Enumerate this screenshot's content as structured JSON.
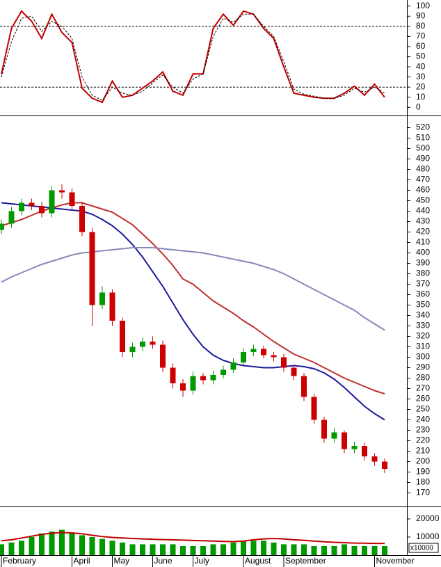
{
  "chart_data": [
    {
      "type": "line",
      "series": [
        {
          "color": "#c00000",
          "style": "solid",
          "values": [
            33,
            78,
            95,
            85,
            68,
            92,
            74,
            64,
            19,
            9,
            5,
            26,
            10,
            12,
            19,
            26,
            35,
            16,
            12,
            33,
            33,
            78,
            92,
            81,
            95,
            92,
            78,
            68,
            40,
            14,
            12,
            10,
            9,
            9,
            14,
            21,
            12,
            23,
            10
          ]
        },
        {
          "color": "#000000",
          "style": "dashed",
          "values": [
            30,
            65,
            88,
            90,
            75,
            85,
            80,
            68,
            30,
            12,
            7,
            20,
            14,
            12,
            16,
            24,
            32,
            20,
            14,
            28,
            33,
            70,
            88,
            84,
            92,
            92,
            80,
            70,
            45,
            18,
            13,
            11,
            9,
            9,
            12,
            19,
            15,
            20,
            14
          ]
        }
      ],
      "levels": [
        80,
        20
      ],
      "ylim": [
        -8,
        106
      ],
      "yticks": [
        0,
        10,
        20,
        30,
        40,
        50,
        60,
        70,
        80,
        90,
        100
      ]
    },
    {
      "type": "candlestick",
      "open": [
        422,
        428,
        440,
        448,
        445,
        438,
        460,
        458,
        445,
        420,
        350,
        362,
        335,
        305,
        310,
        315,
        312,
        290,
        275,
        268,
        282,
        278,
        283,
        288,
        295,
        305,
        308,
        302,
        300,
        290,
        282,
        262,
        240,
        222,
        228,
        212,
        215,
        205,
        200
      ],
      "high": [
        432,
        444,
        452,
        452,
        449,
        464,
        466,
        462,
        449,
        424,
        368,
        365,
        338,
        314,
        319,
        320,
        316,
        294,
        279,
        286,
        285,
        287,
        292,
        299,
        309,
        312,
        311,
        305,
        303,
        293,
        285,
        265,
        243,
        232,
        230,
        219,
        218,
        208,
        203
      ],
      "low": [
        418,
        424,
        436,
        441,
        434,
        434,
        452,
        441,
        416,
        330,
        346,
        330,
        300,
        300,
        306,
        308,
        286,
        270,
        262,
        264,
        274,
        274,
        280,
        285,
        292,
        301,
        299,
        296,
        286,
        278,
        258,
        236,
        218,
        218,
        208,
        208,
        201,
        196,
        189
      ],
      "close": [
        428,
        440,
        448,
        445,
        438,
        460,
        458,
        445,
        420,
        350,
        362,
        335,
        305,
        310,
        315,
        312,
        290,
        275,
        268,
        282,
        278,
        283,
        288,
        295,
        305,
        308,
        302,
        300,
        290,
        282,
        262,
        240,
        222,
        228,
        212,
        215,
        205,
        200,
        193
      ],
      "up_color": "#009900",
      "down_color": "#cc0000",
      "series": [
        {
          "color": "#1a1aa0",
          "values": [
            448,
            447,
            446,
            445,
            444,
            443,
            442,
            441,
            440,
            437,
            432,
            426,
            418,
            408,
            396,
            382,
            368,
            352,
            336,
            322,
            310,
            302,
            297,
            294,
            292,
            291,
            290,
            290,
            291,
            292,
            291,
            289,
            285,
            279,
            271,
            262,
            253,
            246,
            240
          ]
        },
        {
          "color": "#c03030",
          "values": [
            426,
            429,
            432,
            436,
            440,
            443,
            446,
            448,
            448,
            445,
            442,
            439,
            433,
            427,
            418,
            409,
            399,
            388,
            375,
            370,
            362,
            354,
            348,
            342,
            335,
            329,
            322,
            315,
            309,
            303,
            299,
            295,
            290,
            285,
            280,
            276,
            272,
            268,
            265
          ]
        },
        {
          "color": "#8888b8",
          "values": [
            372,
            377,
            381,
            385,
            389,
            392,
            395,
            398,
            400,
            401,
            402,
            403,
            404,
            405,
            405,
            405,
            404,
            403,
            402,
            401,
            400,
            398,
            396,
            394,
            392,
            390,
            387,
            384,
            380,
            375,
            370,
            365,
            360,
            355,
            350,
            345,
            338,
            332,
            326
          ]
        }
      ],
      "ylim": [
        157,
        531
      ],
      "yticks": [
        170,
        180,
        190,
        200,
        210,
        220,
        230,
        240,
        250,
        260,
        270,
        280,
        290,
        300,
        310,
        320,
        330,
        340,
        350,
        360,
        370,
        380,
        390,
        400,
        410,
        420,
        430,
        440,
        450,
        460,
        470,
        480,
        490,
        500,
        510,
        520
      ]
    },
    {
      "type": "bar",
      "categories": [
        "February",
        null,
        null,
        null,
        null,
        null,
        null,
        "April",
        null,
        null,
        null,
        "May",
        null,
        null,
        null,
        "June",
        null,
        null,
        null,
        "July",
        null,
        null,
        null,
        null,
        "August",
        null,
        null,
        null,
        "September",
        null,
        null,
        null,
        null,
        null,
        null,
        null,
        null,
        "November",
        null
      ],
      "values": [
        6000,
        7000,
        8000,
        10000,
        12000,
        13000,
        14000,
        12000,
        11000,
        10000,
        9000,
        8000,
        7000,
        6000,
        6000,
        6000,
        6000,
        6000,
        5000,
        5000,
        5000,
        6000,
        6000,
        7000,
        8000,
        8000,
        8000,
        7000,
        6000,
        6000,
        6000,
        5000,
        5000,
        5000,
        6000,
        5000,
        5000,
        5000,
        5000
      ],
      "color": "#009900",
      "series": [
        {
          "color": "#c00000",
          "values": [
            8000,
            8500,
            9500,
            10500,
            11500,
            12200,
            12500,
            12300,
            11800,
            11000,
            10300,
            9800,
            9500,
            9200,
            9000,
            8800,
            8600,
            8500,
            8300,
            8100,
            8000,
            7800,
            7600,
            7500,
            7800,
            8500,
            9000,
            9200,
            9000,
            8500,
            8200,
            7800,
            7400,
            7100,
            6900,
            6700,
            6600,
            6500,
            6500
          ]
        }
      ],
      "unit_label": "x10000",
      "ylim": [
        0,
        26500
      ],
      "yticks": [
        10000,
        20000
      ]
    }
  ]
}
